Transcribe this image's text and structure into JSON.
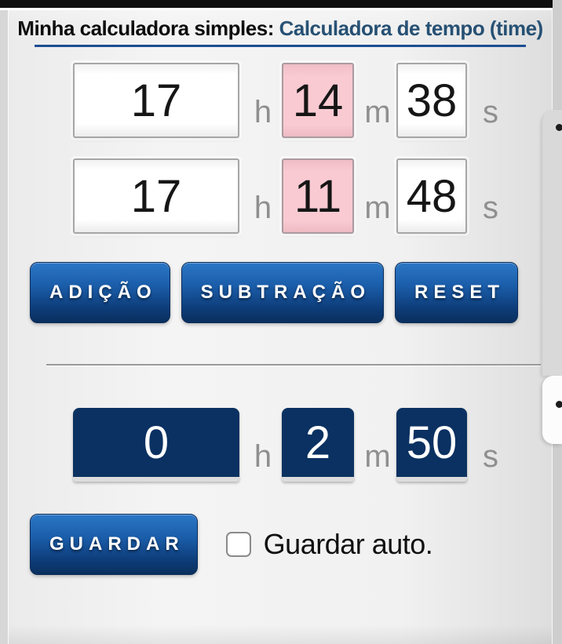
{
  "header": {
    "title_main": "Minha calculadora simples",
    "title_sep": ": ",
    "title_sub": "Calculadora de tempo (time)"
  },
  "inputs": {
    "row1": {
      "hours": "17",
      "minutes": "14",
      "seconds": "38"
    },
    "row2": {
      "hours": "17",
      "minutes": "11",
      "seconds": "48"
    }
  },
  "unit_labels": {
    "hours": "h",
    "minutes": "m",
    "seconds": "s"
  },
  "actions": {
    "add_label": "ADIÇÃO",
    "subtract_label": "SUBTRAÇÃO",
    "reset_label": "RESET",
    "save_label": "GUARDAR"
  },
  "result": {
    "hours": "0",
    "minutes": "2",
    "seconds": "50"
  },
  "save_auto": {
    "label": "Guardar auto.",
    "checked": false
  },
  "colors": {
    "title_blue": "#265073",
    "underline_blue": "#1d4d92",
    "button_gradient_top": "#2b77c6",
    "button_gradient_bottom": "#0a2f5e",
    "minute_highlight_pink": "#f9cad2",
    "result_navy": "#0a3161",
    "unit_label_gray": "#8f8f8f"
  }
}
